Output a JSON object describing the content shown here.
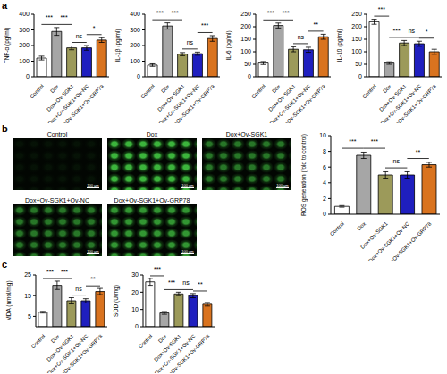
{
  "panel_labels": [
    "a",
    "b",
    "c"
  ],
  "chart_data": [
    {
      "type": "bar",
      "y_label": "TNF-α (pg/ml)",
      "categories": [
        "Control",
        "Dox",
        "Dox+Ov-SGK1",
        "Dox+Ov-SGK1+Ov-NC",
        "Dox+Ov-SGK1+Ov-GRP78"
      ],
      "values": [
        120,
        290,
        185,
        185,
        235
      ],
      "errors": [
        12,
        25,
        12,
        15,
        15
      ],
      "colors": [
        "#ffffff",
        "#a6a6a6",
        "#9c9a5a",
        "#1f1fbf",
        "#d9731f"
      ],
      "ylim": [
        0,
        400
      ],
      "yticks": [
        0,
        100,
        200,
        300,
        400
      ],
      "grid": false,
      "significance": [
        {
          "from": 0,
          "to": 1,
          "label": "***"
        },
        {
          "from": 1,
          "to": 2,
          "label": "***"
        },
        {
          "from": 2,
          "to": 3,
          "label": "ns"
        },
        {
          "from": 3,
          "to": 4,
          "label": "*"
        }
      ]
    },
    {
      "type": "bar",
      "y_label": "IL-1β (pg/ml)",
      "categories": [
        "Control",
        "Dox",
        "Dox+Ov-SGK1",
        "Dox+Ov-SGK1+Ov-NC",
        "Dox+Ov-SGK1+Ov-GRP78"
      ],
      "values": [
        75,
        325,
        145,
        148,
        245
      ],
      "errors": [
        8,
        20,
        10,
        10,
        18
      ],
      "colors": [
        "#ffffff",
        "#a6a6a6",
        "#9c9a5a",
        "#1f1fbf",
        "#d9731f"
      ],
      "ylim": [
        0,
        400
      ],
      "yticks": [
        0,
        100,
        200,
        300,
        400
      ],
      "grid": false,
      "significance": [
        {
          "from": 0,
          "to": 1,
          "label": "***"
        },
        {
          "from": 1,
          "to": 2,
          "label": "***"
        },
        {
          "from": 2,
          "to": 3,
          "label": "ns"
        },
        {
          "from": 3,
          "to": 4,
          "label": "***"
        }
      ]
    },
    {
      "type": "bar",
      "y_label": "IL-6 (pg/ml)",
      "categories": [
        "Control",
        "Dox",
        "Dox+Ov-SGK1",
        "Dox+Ov-SGK1+Ov-NC",
        "Dox+Ov-SGK1+Ov-GRP78"
      ],
      "values": [
        55,
        205,
        110,
        108,
        160
      ],
      "errors": [
        6,
        10,
        10,
        10,
        10
      ],
      "colors": [
        "#ffffff",
        "#a6a6a6",
        "#9c9a5a",
        "#1f1fbf",
        "#d9731f"
      ],
      "ylim": [
        0,
        250
      ],
      "yticks": [
        0,
        50,
        100,
        150,
        200,
        250
      ],
      "grid": false,
      "significance": [
        {
          "from": 0,
          "to": 1,
          "label": "***"
        },
        {
          "from": 1,
          "to": 2,
          "label": "***"
        },
        {
          "from": 2,
          "to": 3,
          "label": "ns"
        },
        {
          "from": 3,
          "to": 4,
          "label": "**"
        }
      ]
    },
    {
      "type": "bar",
      "y_label": "IL-10 (pg/ml)",
      "categories": [
        "Control",
        "Dox",
        "Dox+Ov-SGK1",
        "Dox+Ov-SGK1+Ov-NC",
        "Dox+Ov-SGK1+Ov-GRP78"
      ],
      "values": [
        220,
        55,
        135,
        132,
        100
      ],
      "errors": [
        10,
        5,
        10,
        10,
        10
      ],
      "colors": [
        "#ffffff",
        "#a6a6a6",
        "#9c9a5a",
        "#1f1fbf",
        "#d9731f"
      ],
      "ylim": [
        0,
        250
      ],
      "yticks": [
        0,
        50,
        100,
        150,
        200,
        250
      ],
      "grid": false,
      "significance": [
        {
          "from": 0,
          "to": 1,
          "label": "***"
        },
        {
          "from": 1,
          "to": 2,
          "label": "***"
        },
        {
          "from": 2,
          "to": 3,
          "label": "ns"
        },
        {
          "from": 3,
          "to": 4,
          "label": "*"
        }
      ]
    },
    {
      "type": "bar",
      "y_label": "ROS generation (fold to control)",
      "categories": [
        "Control",
        "Dox",
        "Dox+Ov-SGK1",
        "Dox+Ov-SGK1+Ov-NC",
        "Dox+Ov-SGK1+Ov-GRP78"
      ],
      "values": [
        1,
        7.5,
        5,
        5,
        6.3
      ],
      "errors": [
        0.1,
        0.4,
        0.4,
        0.4,
        0.3
      ],
      "colors": [
        "#ffffff",
        "#a6a6a6",
        "#9c9a5a",
        "#1f1fbf",
        "#d9731f"
      ],
      "ylim": [
        0,
        10
      ],
      "yticks": [
        0,
        2,
        4,
        6,
        8,
        10
      ],
      "grid": false,
      "significance": [
        {
          "from": 0,
          "to": 1,
          "label": "***"
        },
        {
          "from": 1,
          "to": 2,
          "label": "***"
        },
        {
          "from": 2,
          "to": 3,
          "label": "ns"
        },
        {
          "from": 3,
          "to": 4,
          "label": "**"
        }
      ]
    },
    {
      "type": "bar",
      "y_label": "MDA (nmol/mg)",
      "categories": [
        "Control",
        "Dox",
        "Dox+Ov-SGK1",
        "Dox+Ov-SGK1+Ov-NC",
        "Dox+Ov-SGK1+Ov-GRP78"
      ],
      "values": [
        7,
        20,
        12.5,
        12.5,
        17
      ],
      "errors": [
        0.4,
        2,
        1.5,
        1,
        1.5
      ],
      "colors": [
        "#ffffff",
        "#a6a6a6",
        "#9c9a5a",
        "#1f1fbf",
        "#d9731f"
      ],
      "ylim": [
        0,
        25
      ],
      "yticks": [
        0,
        5,
        10,
        15,
        20,
        25
      ],
      "grid": false,
      "significance": [
        {
          "from": 0,
          "to": 1,
          "label": "***"
        },
        {
          "from": 1,
          "to": 2,
          "label": "***"
        },
        {
          "from": 2,
          "to": 3,
          "label": "ns"
        },
        {
          "from": 3,
          "to": 4,
          "label": "**"
        }
      ]
    },
    {
      "type": "bar",
      "y_label": "SOD (U/mg)",
      "categories": [
        "Control",
        "Dox",
        "Dox+Ov-SGK1",
        "Dox+Ov-SGK1+Ov-NC",
        "Dox+Ov-SGK1+Ov-GRP78"
      ],
      "values": [
        26,
        8,
        19,
        18,
        13
      ],
      "errors": [
        2,
        0.8,
        1,
        1.2,
        1
      ],
      "colors": [
        "#ffffff",
        "#a6a6a6",
        "#9c9a5a",
        "#1f1fbf",
        "#d9731f"
      ],
      "ylim": [
        0,
        30
      ],
      "yticks": [
        0,
        10,
        20,
        30
      ],
      "grid": false,
      "significance": [
        {
          "from": 0,
          "to": 1,
          "label": "***"
        },
        {
          "from": 1,
          "to": 2,
          "label": "***"
        },
        {
          "from": 2,
          "to": 3,
          "label": "ns"
        },
        {
          "from": 3,
          "to": 4,
          "label": "**"
        }
      ]
    }
  ],
  "images": [
    {
      "label": "Control",
      "scale_bar": "100 µm"
    },
    {
      "label": "Dox",
      "scale_bar": "100 µm"
    },
    {
      "label": "Dox+Ov-SGK1",
      "scale_bar": "100 µm"
    },
    {
      "label": "Dox+Ov-SGK1+Ov-NC",
      "scale_bar": "100 µm"
    },
    {
      "label": "Dox+Ov-SGK1+Ov-GRP78",
      "scale_bar": "100 µm"
    }
  ]
}
